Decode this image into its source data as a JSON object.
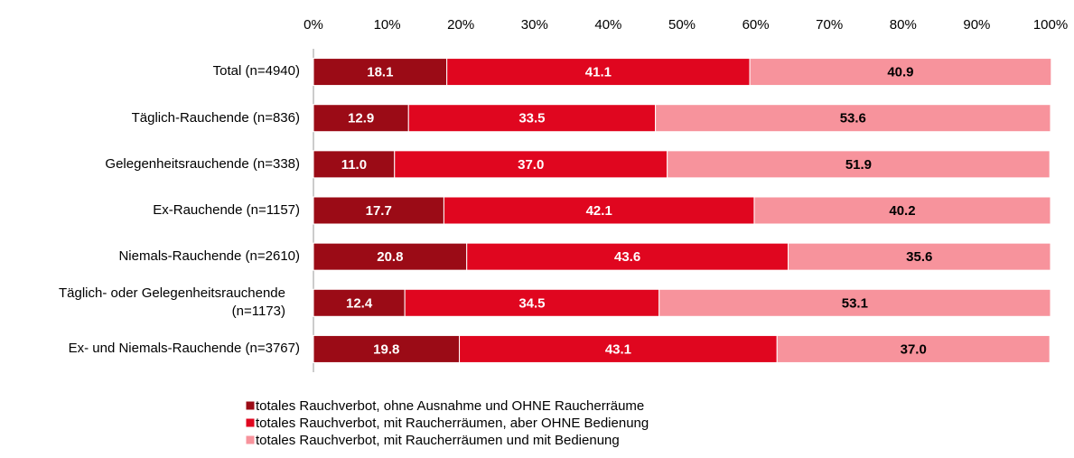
{
  "chart_data": {
    "type": "stacked-bar-horizontal",
    "categories": [
      "Total (n=4940)",
      "Täglich-Rauchende (n=836)",
      "Gelegenheitsrauchende (n=338)",
      "Ex-Rauchende (n=1157)",
      "Niemals-Rauchende (n=2610)",
      "Täglich- oder Gelegenheitsrauchende (n=1173)",
      "Ex- und Niemals-Rauchende (n=3767)"
    ],
    "series": [
      {
        "name": "totales Rauchverbot, ohne Ausnahme und OHNE Raucherräume",
        "color": "#9b0b16",
        "label_color": "#ffffff",
        "values": [
          18.1,
          12.9,
          11.0,
          17.7,
          20.8,
          12.4,
          19.8
        ],
        "value_labels": [
          "18.1",
          "12.9",
          "11.0",
          "17.7",
          "20.8",
          "12.4",
          "19.8"
        ]
      },
      {
        "name": "totales Rauchverbot, mit Raucherräumen, aber OHNE Bedienung",
        "color": "#e0061f",
        "label_color": "#ffffff",
        "values": [
          41.1,
          33.5,
          37.0,
          42.1,
          43.6,
          34.5,
          43.1
        ],
        "value_labels": [
          "41.1",
          "33.5",
          "37.0",
          "42.1",
          "43.6",
          "34.5",
          "43.1"
        ]
      },
      {
        "name": "totales Rauchverbot, mit Raucherräumen und mit Bedienung",
        "color": "#f7939c",
        "label_color": "#000000",
        "values": [
          40.9,
          53.6,
          51.9,
          40.2,
          35.6,
          53.1,
          37.0
        ],
        "value_labels": [
          "40.9",
          "53.6",
          "51.9",
          "40.2",
          "35.6",
          "53.1",
          "37.0"
        ]
      }
    ],
    "xlim": [
      0,
      100
    ],
    "xticks": [
      {
        "value": 0,
        "label": "0%"
      },
      {
        "value": 10,
        "label": "10%"
      },
      {
        "value": 20,
        "label": "20%"
      },
      {
        "value": 30,
        "label": "30%"
      },
      {
        "value": 40,
        "label": "40%"
      },
      {
        "value": 50,
        "label": "50%"
      },
      {
        "value": 60,
        "label": "60%"
      },
      {
        "value": 70,
        "label": "70%"
      },
      {
        "value": 80,
        "label": "80%"
      },
      {
        "value": 90,
        "label": "90%"
      },
      {
        "value": 100,
        "label": "100%"
      }
    ],
    "legend": "bottom"
  }
}
